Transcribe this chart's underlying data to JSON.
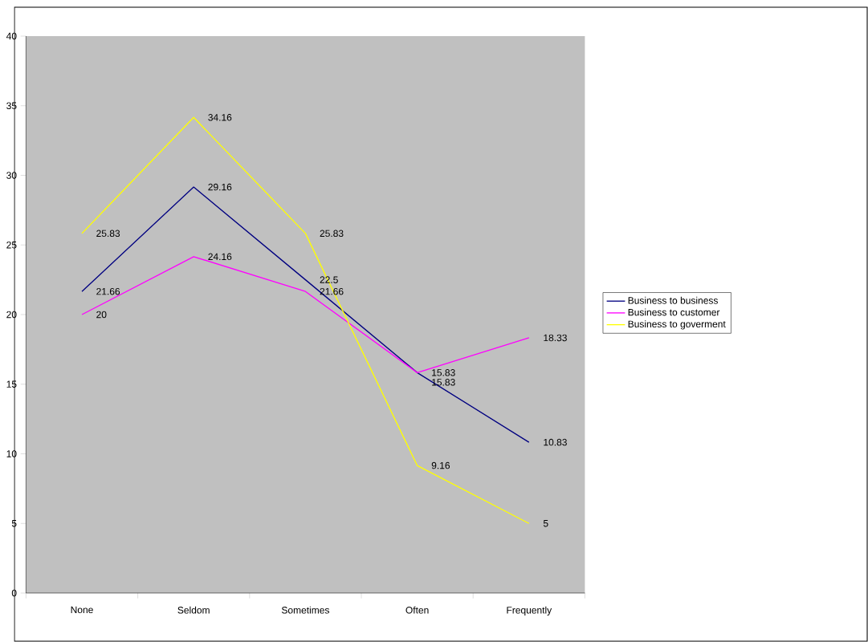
{
  "chart_data": {
    "type": "line",
    "categories": [
      "None",
      "Seldom",
      "Sometimes",
      "Often",
      "Frequently"
    ],
    "series": [
      {
        "name": "Business to business",
        "color": "#000080",
        "values": [
          21.66,
          29.16,
          22.5,
          15.83,
          10.83
        ]
      },
      {
        "name": "Business to customer",
        "color": "#ff00ff",
        "values": [
          20,
          24.16,
          21.66,
          15.83,
          18.33
        ]
      },
      {
        "name": "Business to goverment",
        "color": "#ffff00",
        "values": [
          25.83,
          34.16,
          25.83,
          9.16,
          5
        ]
      }
    ],
    "ylim": [
      0,
      40
    ],
    "yticks": [
      0,
      5,
      10,
      15,
      20,
      25,
      30,
      35,
      40
    ],
    "data_labels": true,
    "grid": false,
    "legend": "right",
    "marker": "none",
    "line_style": "solid"
  }
}
